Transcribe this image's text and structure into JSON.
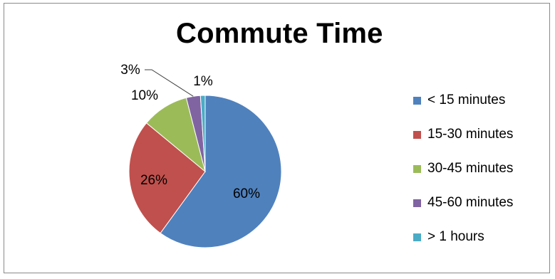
{
  "chart_data": {
    "type": "pie",
    "title": "Commute Time",
    "categories": [
      "< 15 minutes",
      "15-30 minutes",
      "30-45 minutes",
      "45-60 minutes",
      "> 1 hours"
    ],
    "values": [
      60,
      26,
      10,
      3,
      1
    ],
    "data_labels": [
      "60%",
      "26%",
      "10%",
      "3%",
      "1%"
    ],
    "colors": [
      "#4F81BD",
      "#C0504D",
      "#9BBB59",
      "#8064A2",
      "#4BACC6"
    ],
    "legend_position": "right"
  }
}
